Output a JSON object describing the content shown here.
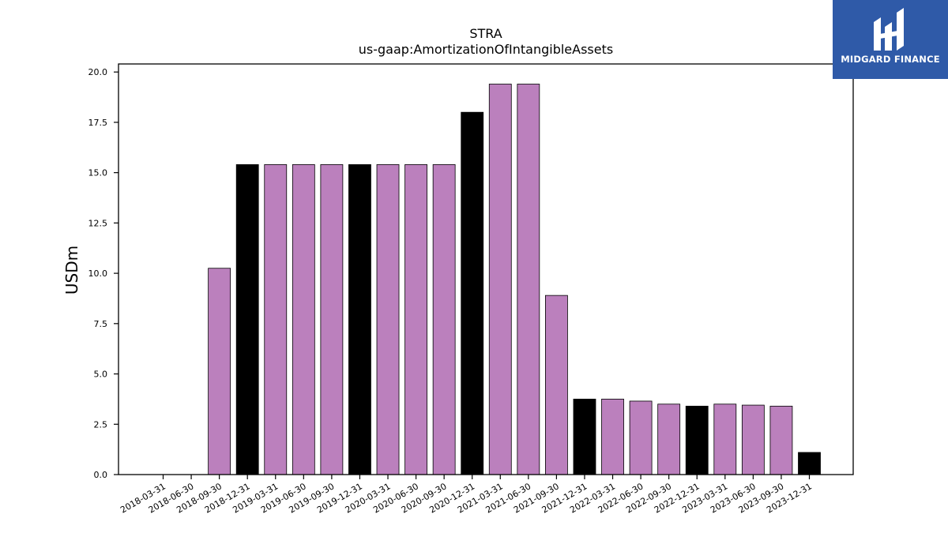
{
  "chart_data": {
    "type": "bar",
    "title": "STRA",
    "subtitle": "us-gaap:AmortizationOfIntangibleAssets",
    "xlabel": "",
    "ylabel": "USDm",
    "ylim": [
      0,
      20.4
    ],
    "yticks": [
      "0.0",
      "2.5",
      "5.0",
      "7.5",
      "10.0",
      "12.5",
      "15.0",
      "17.5",
      "20.0"
    ],
    "grid": false,
    "categories": [
      "2018-03-31",
      "2018-06-30",
      "2018-09-30",
      "2018-12-31",
      "2019-03-31",
      "2019-06-30",
      "2019-09-30",
      "2019-12-31",
      "2020-03-31",
      "2020-06-30",
      "2020-09-30",
      "2020-12-31",
      "2021-03-31",
      "2021-06-30",
      "2021-09-30",
      "2021-12-31",
      "2022-03-31",
      "2022-06-30",
      "2022-09-30",
      "2022-12-31",
      "2023-03-31",
      "2023-06-30",
      "2023-09-30",
      "2023-12-31"
    ],
    "values": [
      null,
      null,
      10.25,
      15.4,
      15.4,
      15.4,
      15.4,
      15.4,
      15.4,
      15.4,
      15.4,
      18.0,
      19.4,
      19.4,
      8.9,
      3.75,
      3.75,
      3.65,
      3.5,
      3.4,
      3.5,
      3.45,
      3.4,
      1.1
    ],
    "bar_colors": [
      "#bb80bd",
      "#bb80bd",
      "#bb80bd",
      "#000000",
      "#bb80bd",
      "#bb80bd",
      "#bb80bd",
      "#000000",
      "#bb80bd",
      "#bb80bd",
      "#bb80bd",
      "#000000",
      "#bb80bd",
      "#bb80bd",
      "#bb80bd",
      "#000000",
      "#bb80bd",
      "#bb80bd",
      "#bb80bd",
      "#000000",
      "#bb80bd",
      "#bb80bd",
      "#bb80bd",
      "#000000"
    ]
  },
  "logo": {
    "text": "MIDGARD FINANCE",
    "background": "#2f5aa8"
  }
}
